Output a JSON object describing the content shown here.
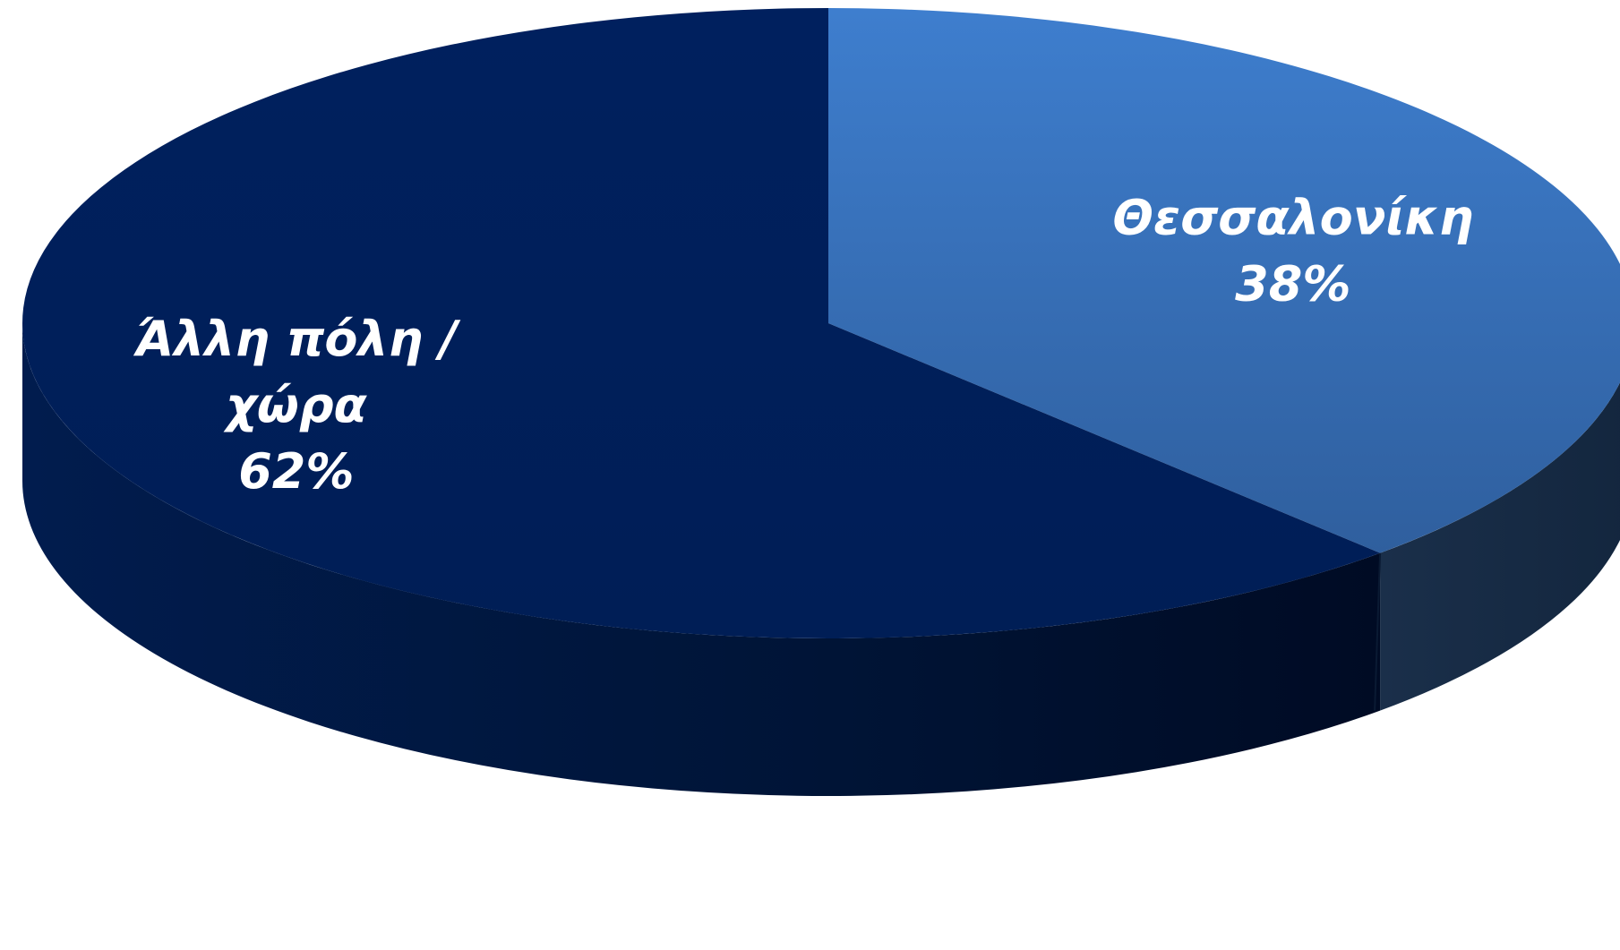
{
  "chart_data": {
    "type": "pie",
    "style": "3d",
    "categories": [
      "Θεσσαλονίκη",
      "Άλλη πόλη / χώρα"
    ],
    "values": [
      38,
      62
    ],
    "unit": "%",
    "colors": [
      "#3B78C4",
      "#00205A"
    ],
    "side_colors": [
      "#142840",
      "#00143C"
    ],
    "slices": [
      {
        "name": "Θεσσαλονίκη",
        "value": 38,
        "label_lines": [
          "Θεσσαλονίκη"
        ],
        "value_label": "38%",
        "color": "#3B78C4",
        "side_color": "#142840"
      },
      {
        "name": "Άλλη πόλη / χώρα",
        "value": 62,
        "label_lines": [
          "Άλλη πόλη /",
          "χώρα"
        ],
        "value_label": "62%",
        "color": "#00205A",
        "side_color": "#00143C"
      }
    ],
    "title": "",
    "legend": "none"
  }
}
